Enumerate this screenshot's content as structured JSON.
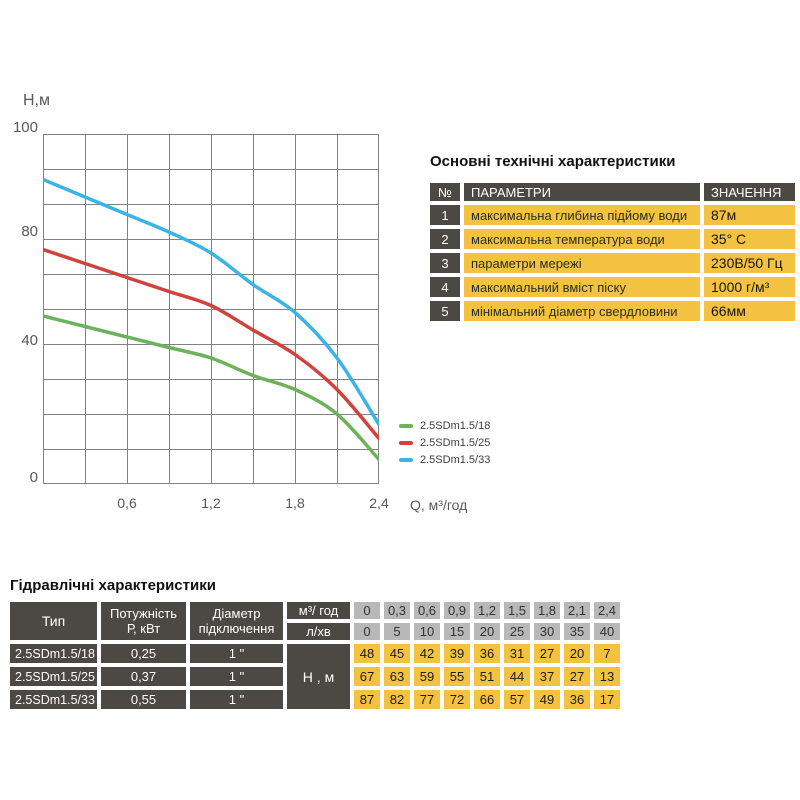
{
  "chart": {
    "y_axis_title": "Н,м",
    "x_axis_title": "Q,  м³/год",
    "y_tick_labels": [
      "100",
      "80",
      "40",
      "0"
    ],
    "x_tick_labels": [
      "0,6",
      "1,2",
      "1,8",
      "2,4"
    ]
  },
  "chart_data": {
    "type": "line",
    "title": "",
    "xlabel": "Q, м³/год",
    "ylabel": "Н, м",
    "xlim": [
      0,
      2.4
    ],
    "ylim": [
      0,
      100
    ],
    "grid": true,
    "legend_position": "right-bottom",
    "x": [
      0,
      0.3,
      0.6,
      0.9,
      1.2,
      1.5,
      1.8,
      2.1,
      2.4
    ],
    "series": [
      {
        "name": "2.5SDm1.5/18",
        "color": "#6db25b",
        "values": [
          48,
          45,
          42,
          39,
          36,
          31,
          27,
          20,
          7
        ]
      },
      {
        "name": "2.5SDm1.5/25",
        "color": "#d2423c",
        "values": [
          67,
          63,
          59,
          55,
          51,
          44,
          37,
          27,
          13
        ]
      },
      {
        "name": "2.5SDm1.5/33",
        "color": "#3bb3e6",
        "values": [
          87,
          82,
          77,
          72,
          66,
          57,
          49,
          36,
          17
        ]
      }
    ]
  },
  "tech_table": {
    "title": "Основні технічні характеристики",
    "headers": {
      "num": "№",
      "param": "ПАРАМЕТРИ",
      "value": "ЗНАЧЕННЯ"
    },
    "rows": [
      {
        "num": "1",
        "param": "максимальна глибина підйому води",
        "value": "87м"
      },
      {
        "num": "2",
        "param": "максимальна температура води",
        "value": "35° С"
      },
      {
        "num": "3",
        "param": "параметри мережі",
        "value": "230В/50 Гц"
      },
      {
        "num": "4",
        "param": "максимальний вміст піску",
        "value": "1000 г/м³"
      },
      {
        "num": "5",
        "param": "мінімальний діаметр свердловини",
        "value": "66мм"
      }
    ]
  },
  "hydraulic_table": {
    "title": "Гідравлічні характеристики",
    "headers": {
      "type": "Тип",
      "power_l1": "Потужність",
      "power_l2": "Р, кВт",
      "diameter_l1": "Діаметр",
      "diameter_l2": "підключення",
      "flow_m3": "м³/ год",
      "flow_lmin": "л/хв",
      "head_unit": "Н , м"
    },
    "flow_m3": [
      "0",
      "0,3",
      "0,6",
      "0,9",
      "1,2",
      "1,5",
      "1,8",
      "2,1",
      "2,4"
    ],
    "flow_lmin": [
      "0",
      "5",
      "10",
      "15",
      "20",
      "25",
      "30",
      "35",
      "40"
    ],
    "rows": [
      {
        "type": "2.5SDm1.5/18",
        "power": "0,25",
        "diameter": "1 \"",
        "heads": [
          "48",
          "45",
          "42",
          "39",
          "36",
          "31",
          "27",
          "20",
          "7"
        ]
      },
      {
        "type": "2.5SDm1.5/25",
        "power": "0,37",
        "diameter": "1 \"",
        "heads": [
          "67",
          "63",
          "59",
          "55",
          "51",
          "44",
          "37",
          "27",
          "13"
        ]
      },
      {
        "type": "2.5SDm1.5/33",
        "power": "0,55",
        "diameter": "1 \"",
        "heads": [
          "87",
          "82",
          "77",
          "72",
          "66",
          "57",
          "49",
          "36",
          "17"
        ]
      }
    ]
  },
  "colors": {
    "dark_cell": "#4c4843",
    "yellow_cell": "#f2c240",
    "gray_cell": "#b8b8b8",
    "grid_line": "#7f8182",
    "green_curve": "#6db25b",
    "red_curve": "#d2423c",
    "blue_curve": "#3bb3e6"
  }
}
